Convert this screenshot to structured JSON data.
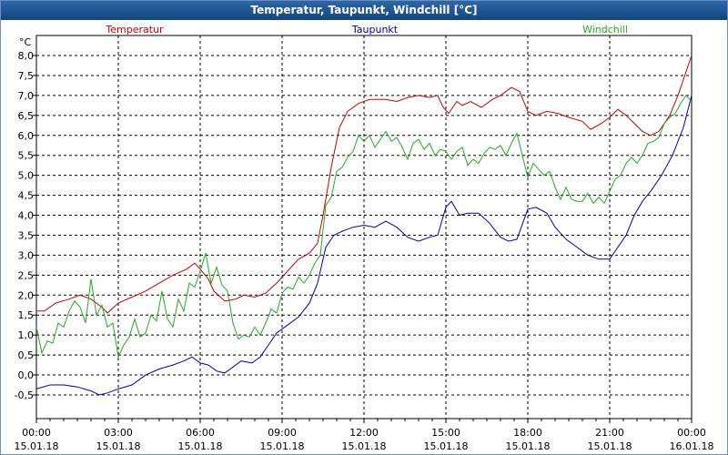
{
  "window": {
    "title": "Temperatur, Taupunkt, Windchill [°C]"
  },
  "chart_data": {
    "type": "line",
    "title": "Temperatur, Taupunkt, Windchill [°C]",
    "ylabel": "°C",
    "ylim": [
      -0.5,
      8.0
    ],
    "y_ticks": [
      "8,0",
      "7,5",
      "7,0",
      "6,5",
      "6,0",
      "5,5",
      "5,0",
      "4,5",
      "4,0",
      "3,5",
      "3,0",
      "2,5",
      "2,0",
      "1,5",
      "1,0",
      "0,5",
      "0,0",
      "-0,5"
    ],
    "x_ticks": [
      {
        "time": "00:00",
        "date": "15.01.18"
      },
      {
        "time": "03:00",
        "date": "15.01.18"
      },
      {
        "time": "06:00",
        "date": "15.01.18"
      },
      {
        "time": "09:00",
        "date": "15.01.18"
      },
      {
        "time": "12:00",
        "date": "15.01.18"
      },
      {
        "time": "15:00",
        "date": "15.01.18"
      },
      {
        "time": "18:00",
        "date": "15.01.18"
      },
      {
        "time": "21:00",
        "date": "15.01.18"
      },
      {
        "time": "00:00",
        "date": "16.01.18"
      }
    ],
    "x_unit": "hours",
    "grid": true,
    "series": [
      {
        "name": "Temperatur",
        "color": "#cc0000",
        "points": [
          [
            0,
            1.6
          ],
          [
            0.3,
            1.6
          ],
          [
            0.7,
            1.8
          ],
          [
            1.2,
            1.9
          ],
          [
            1.6,
            2.0
          ],
          [
            2.0,
            1.9
          ],
          [
            2.4,
            1.7
          ],
          [
            2.6,
            1.55
          ],
          [
            3.0,
            1.8
          ],
          [
            3.5,
            1.95
          ],
          [
            4.0,
            2.1
          ],
          [
            4.5,
            2.3
          ],
          [
            5.0,
            2.5
          ],
          [
            5.5,
            2.65
          ],
          [
            5.8,
            2.8
          ],
          [
            6.0,
            2.65
          ],
          [
            6.3,
            2.4
          ],
          [
            6.5,
            2.1
          ],
          [
            6.9,
            1.85
          ],
          [
            7.3,
            1.9
          ],
          [
            7.6,
            2.0
          ],
          [
            8.0,
            1.95
          ],
          [
            8.4,
            2.05
          ],
          [
            8.8,
            2.3
          ],
          [
            9.2,
            2.6
          ],
          [
            9.6,
            2.9
          ],
          [
            10.0,
            3.05
          ],
          [
            10.3,
            3.3
          ],
          [
            10.5,
            4.0
          ],
          [
            10.8,
            5.2
          ],
          [
            11.1,
            6.2
          ],
          [
            11.4,
            6.6
          ],
          [
            11.8,
            6.8
          ],
          [
            12.2,
            6.9
          ],
          [
            12.8,
            6.9
          ],
          [
            13.2,
            6.85
          ],
          [
            13.6,
            6.95
          ],
          [
            14.0,
            7.0
          ],
          [
            14.4,
            6.95
          ],
          [
            14.7,
            7.0
          ],
          [
            14.9,
            6.7
          ],
          [
            15.1,
            6.55
          ],
          [
            15.4,
            6.85
          ],
          [
            15.6,
            6.75
          ],
          [
            15.9,
            6.85
          ],
          [
            16.3,
            6.7
          ],
          [
            16.7,
            6.9
          ],
          [
            17.0,
            7.0
          ],
          [
            17.4,
            7.2
          ],
          [
            17.7,
            7.1
          ],
          [
            18.0,
            6.6
          ],
          [
            18.3,
            6.5
          ],
          [
            18.7,
            6.6
          ],
          [
            19.1,
            6.55
          ],
          [
            19.5,
            6.45
          ],
          [
            20.0,
            6.35
          ],
          [
            20.3,
            6.15
          ],
          [
            20.7,
            6.3
          ],
          [
            21.0,
            6.45
          ],
          [
            21.3,
            6.65
          ],
          [
            21.6,
            6.5
          ],
          [
            21.9,
            6.3
          ],
          [
            22.2,
            6.1
          ],
          [
            22.5,
            6.0
          ],
          [
            22.8,
            6.1
          ],
          [
            23.2,
            6.5
          ],
          [
            23.5,
            7.0
          ],
          [
            23.8,
            7.6
          ],
          [
            24.0,
            8.0
          ]
        ]
      },
      {
        "name": "Taupunkt",
        "color": "#0000aa",
        "points": [
          [
            0,
            -0.35
          ],
          [
            0.5,
            -0.25
          ],
          [
            1.0,
            -0.25
          ],
          [
            1.5,
            -0.3
          ],
          [
            2.0,
            -0.4
          ],
          [
            2.3,
            -0.5
          ],
          [
            2.6,
            -0.45
          ],
          [
            3.0,
            -0.35
          ],
          [
            3.5,
            -0.25
          ],
          [
            4.0,
            0.0
          ],
          [
            4.5,
            0.15
          ],
          [
            5.0,
            0.25
          ],
          [
            5.4,
            0.35
          ],
          [
            5.7,
            0.45
          ],
          [
            6.0,
            0.3
          ],
          [
            6.3,
            0.25
          ],
          [
            6.6,
            0.1
          ],
          [
            6.9,
            0.05
          ],
          [
            7.2,
            0.2
          ],
          [
            7.5,
            0.35
          ],
          [
            7.9,
            0.3
          ],
          [
            8.2,
            0.45
          ],
          [
            8.5,
            0.75
          ],
          [
            8.8,
            1.05
          ],
          [
            9.2,
            1.25
          ],
          [
            9.6,
            1.45
          ],
          [
            10.0,
            1.8
          ],
          [
            10.3,
            2.3
          ],
          [
            10.6,
            3.2
          ],
          [
            10.9,
            3.5
          ],
          [
            11.2,
            3.6
          ],
          [
            11.6,
            3.7
          ],
          [
            12.0,
            3.75
          ],
          [
            12.4,
            3.7
          ],
          [
            12.8,
            3.85
          ],
          [
            13.2,
            3.7
          ],
          [
            13.6,
            3.45
          ],
          [
            14.0,
            3.35
          ],
          [
            14.4,
            3.45
          ],
          [
            14.7,
            3.5
          ],
          [
            15.0,
            4.2
          ],
          [
            15.2,
            4.35
          ],
          [
            15.5,
            4.0
          ],
          [
            15.8,
            4.05
          ],
          [
            16.2,
            4.05
          ],
          [
            16.6,
            3.8
          ],
          [
            17.0,
            3.45
          ],
          [
            17.3,
            3.35
          ],
          [
            17.6,
            3.4
          ],
          [
            18.0,
            4.15
          ],
          [
            18.3,
            4.2
          ],
          [
            18.7,
            4.05
          ],
          [
            19.0,
            3.7
          ],
          [
            19.4,
            3.4
          ],
          [
            19.8,
            3.2
          ],
          [
            20.2,
            3.0
          ],
          [
            20.6,
            2.9
          ],
          [
            21.0,
            2.9
          ],
          [
            21.3,
            3.2
          ],
          [
            21.6,
            3.5
          ],
          [
            21.9,
            4.0
          ],
          [
            22.2,
            4.35
          ],
          [
            22.5,
            4.6
          ],
          [
            22.9,
            5.0
          ],
          [
            23.3,
            5.5
          ],
          [
            23.7,
            6.2
          ],
          [
            24.0,
            7.0
          ]
        ]
      },
      {
        "name": "Windchill",
        "color": "#22aa22",
        "points": [
          [
            0,
            1.2
          ],
          [
            0.2,
            0.55
          ],
          [
            0.4,
            0.85
          ],
          [
            0.6,
            0.8
          ],
          [
            0.8,
            1.3
          ],
          [
            1.0,
            1.2
          ],
          [
            1.2,
            1.6
          ],
          [
            1.4,
            1.85
          ],
          [
            1.6,
            1.7
          ],
          [
            1.8,
            1.3
          ],
          [
            2.0,
            2.4
          ],
          [
            2.2,
            1.5
          ],
          [
            2.4,
            1.75
          ],
          [
            2.6,
            1.2
          ],
          [
            2.8,
            1.3
          ],
          [
            3.0,
            0.45
          ],
          [
            3.2,
            0.75
          ],
          [
            3.4,
            0.95
          ],
          [
            3.6,
            1.4
          ],
          [
            3.8,
            0.95
          ],
          [
            4.0,
            1.05
          ],
          [
            4.2,
            1.5
          ],
          [
            4.4,
            1.35
          ],
          [
            4.6,
            2.1
          ],
          [
            4.8,
            1.4
          ],
          [
            5.0,
            1.2
          ],
          [
            5.2,
            1.9
          ],
          [
            5.4,
            1.6
          ],
          [
            5.6,
            2.3
          ],
          [
            5.8,
            2.2
          ],
          [
            6.0,
            2.6
          ],
          [
            6.2,
            3.05
          ],
          [
            6.4,
            2.3
          ],
          [
            6.6,
            2.7
          ],
          [
            6.8,
            2.25
          ],
          [
            7.0,
            2.1
          ],
          [
            7.2,
            1.3
          ],
          [
            7.4,
            0.9
          ],
          [
            7.6,
            1.0
          ],
          [
            7.8,
            0.95
          ],
          [
            8.0,
            1.2
          ],
          [
            8.2,
            1.0
          ],
          [
            8.4,
            1.3
          ],
          [
            8.6,
            1.65
          ],
          [
            8.8,
            1.55
          ],
          [
            9.0,
            2.05
          ],
          [
            9.2,
            2.2
          ],
          [
            9.4,
            2.15
          ],
          [
            9.6,
            2.45
          ],
          [
            9.8,
            2.3
          ],
          [
            10.0,
            2.5
          ],
          [
            10.2,
            2.8
          ],
          [
            10.4,
            3.0
          ],
          [
            10.6,
            4.25
          ],
          [
            10.8,
            4.45
          ],
          [
            11.0,
            5.1
          ],
          [
            11.2,
            5.2
          ],
          [
            11.4,
            5.45
          ],
          [
            11.6,
            5.6
          ],
          [
            11.8,
            6.0
          ],
          [
            12.0,
            5.85
          ],
          [
            12.2,
            6.0
          ],
          [
            12.4,
            5.7
          ],
          [
            12.6,
            5.9
          ],
          [
            12.8,
            6.1
          ],
          [
            13.0,
            5.85
          ],
          [
            13.2,
            5.95
          ],
          [
            13.4,
            5.7
          ],
          [
            13.6,
            5.4
          ],
          [
            13.8,
            5.8
          ],
          [
            14.0,
            5.9
          ],
          [
            14.2,
            5.65
          ],
          [
            14.4,
            5.8
          ],
          [
            14.6,
            5.5
          ],
          [
            14.8,
            5.65
          ],
          [
            15.0,
            5.6
          ],
          [
            15.2,
            5.4
          ],
          [
            15.4,
            5.6
          ],
          [
            15.6,
            5.7
          ],
          [
            15.8,
            5.25
          ],
          [
            16.0,
            5.4
          ],
          [
            16.2,
            5.3
          ],
          [
            16.4,
            5.55
          ],
          [
            16.6,
            5.7
          ],
          [
            16.8,
            5.65
          ],
          [
            17.0,
            5.75
          ],
          [
            17.2,
            5.5
          ],
          [
            17.4,
            5.8
          ],
          [
            17.6,
            6.05
          ],
          [
            17.8,
            5.5
          ],
          [
            18.0,
            4.95
          ],
          [
            18.2,
            5.3
          ],
          [
            18.4,
            5.15
          ],
          [
            18.6,
            5.0
          ],
          [
            18.8,
            5.1
          ],
          [
            19.0,
            4.7
          ],
          [
            19.2,
            4.4
          ],
          [
            19.4,
            4.7
          ],
          [
            19.6,
            4.4
          ],
          [
            19.8,
            4.35
          ],
          [
            20.0,
            4.35
          ],
          [
            20.2,
            4.55
          ],
          [
            20.4,
            4.3
          ],
          [
            20.6,
            4.45
          ],
          [
            20.8,
            4.3
          ],
          [
            21.0,
            4.6
          ],
          [
            21.2,
            4.9
          ],
          [
            21.4,
            5.0
          ],
          [
            21.6,
            5.3
          ],
          [
            21.8,
            5.45
          ],
          [
            22.0,
            5.3
          ],
          [
            22.2,
            5.5
          ],
          [
            22.4,
            5.8
          ],
          [
            22.6,
            5.85
          ],
          [
            22.8,
            5.95
          ],
          [
            23.0,
            6.3
          ],
          [
            23.2,
            6.45
          ],
          [
            23.4,
            6.55
          ],
          [
            23.6,
            6.8
          ],
          [
            23.8,
            7.0
          ],
          [
            24.0,
            6.85
          ]
        ]
      }
    ]
  }
}
